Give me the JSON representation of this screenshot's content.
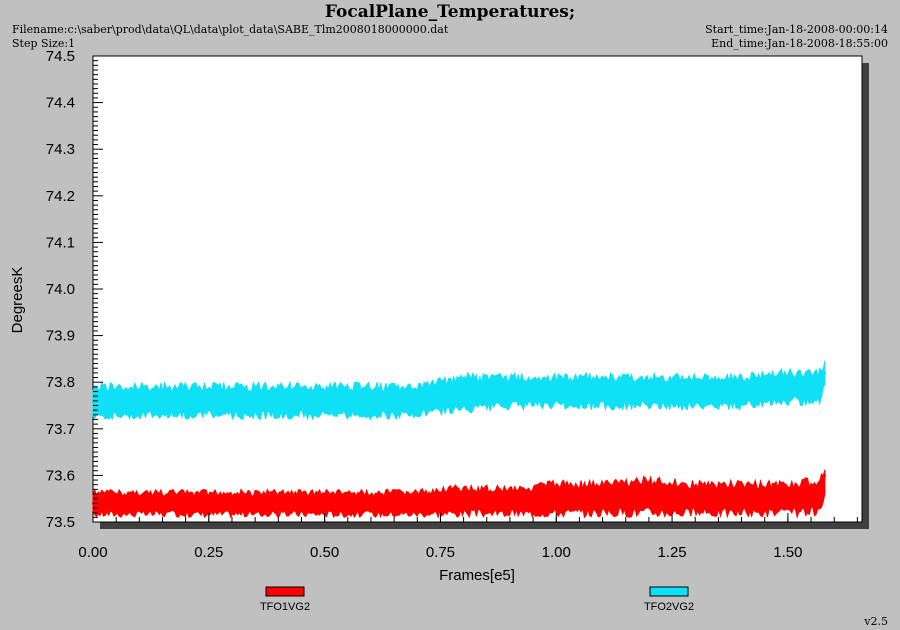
{
  "header": {
    "title": "FocalPlane_Temperatures;",
    "filename": "Filename:c:\\saber\\prod\\data\\QL\\data\\plot_data\\SABE_Tlm2008018000000.dat",
    "step_size": "Step Size:1",
    "start_time": "Start_time:Jan-18-2008-00:00:14",
    "end_time": "End_time:Jan-18-2008-18:55:00"
  },
  "footer": {
    "version": "v2.5"
  },
  "colors": {
    "series1": "#ff0000",
    "series2": "#10e0f5"
  },
  "chart_data": {
    "type": "line",
    "xlabel": "Frames[e5]",
    "ylabel": "DegreesK",
    "xlim": [
      0,
      1.66
    ],
    "ylim": [
      73.5,
      74.5
    ],
    "xticks": [
      "0.00",
      "0.25",
      "0.50",
      "0.75",
      "1.00",
      "1.25",
      "1.50"
    ],
    "yticks": [
      "73.5",
      "73.6",
      "73.7",
      "73.8",
      "73.9",
      "74.0",
      "74.1",
      "74.2",
      "74.3",
      "74.4",
      "74.5"
    ],
    "legend_placement": "bottom",
    "series": [
      {
        "name": "TFO1VG2",
        "color": "#ff0000",
        "x": [
          0.0,
          0.1,
          0.2,
          0.3,
          0.4,
          0.5,
          0.6,
          0.7,
          0.75,
          0.8,
          0.9,
          1.0,
          1.1,
          1.2,
          1.3,
          1.4,
          1.5,
          1.57,
          1.58
        ],
        "y": [
          73.54,
          73.54,
          73.54,
          73.54,
          73.54,
          73.54,
          73.54,
          73.54,
          73.545,
          73.545,
          73.55,
          73.555,
          73.555,
          73.56,
          73.55,
          73.55,
          73.555,
          73.56,
          73.6
        ],
        "lo": [
          73.51,
          73.51,
          73.51,
          73.51,
          73.51,
          73.51,
          73.51,
          73.51,
          73.51,
          73.51,
          73.51,
          73.51,
          73.51,
          73.51,
          73.51,
          73.51,
          73.51,
          73.51,
          73.55
        ],
        "hi": [
          73.57,
          73.57,
          73.57,
          73.57,
          73.57,
          73.57,
          73.57,
          73.57,
          73.58,
          73.58,
          73.58,
          73.59,
          73.59,
          73.6,
          73.59,
          73.59,
          73.59,
          73.6,
          73.63
        ]
      },
      {
        "name": "TFO2VG2",
        "color": "#10e0f5",
        "x": [
          0.0,
          0.1,
          0.2,
          0.3,
          0.4,
          0.5,
          0.6,
          0.7,
          0.75,
          0.8,
          0.9,
          1.0,
          1.1,
          1.2,
          1.3,
          1.4,
          1.5,
          1.57,
          1.58
        ],
        "y": [
          73.76,
          73.76,
          73.76,
          73.76,
          73.76,
          73.76,
          73.76,
          73.76,
          73.77,
          73.775,
          73.78,
          73.78,
          73.775,
          73.785,
          73.78,
          73.78,
          73.785,
          73.785,
          73.82
        ],
        "lo": [
          73.72,
          73.72,
          73.72,
          73.72,
          73.72,
          73.72,
          73.72,
          73.72,
          73.73,
          73.73,
          73.74,
          73.74,
          73.74,
          73.74,
          73.74,
          73.74,
          73.75,
          73.75,
          73.79
        ],
        "hi": [
          73.8,
          73.8,
          73.8,
          73.8,
          73.8,
          73.8,
          73.8,
          73.8,
          73.81,
          73.82,
          73.82,
          73.82,
          73.82,
          73.82,
          73.82,
          73.82,
          73.83,
          73.83,
          73.85
        ]
      }
    ]
  }
}
